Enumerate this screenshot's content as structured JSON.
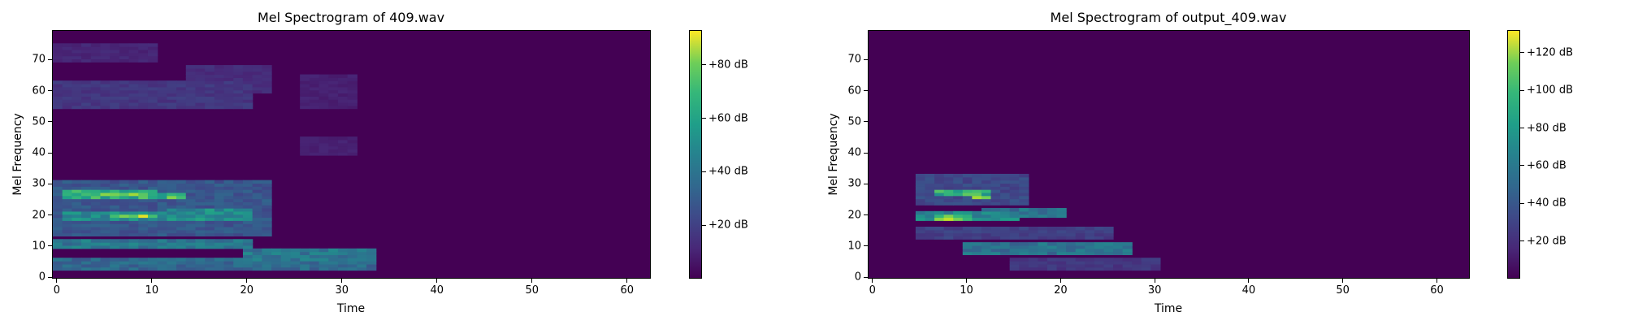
{
  "chart_data": [
    {
      "type": "heatmap",
      "title": "Mel Spectrogram of 409.wav",
      "xlabel": "Time",
      "ylabel": "Mel Frequency",
      "xlim": [
        -0.5,
        62.5
      ],
      "ylim": [
        -0.5,
        79.5
      ],
      "x_ticks": [
        0,
        10,
        20,
        30,
        40,
        50,
        60
      ],
      "y_ticks": [
        0,
        10,
        20,
        30,
        40,
        50,
        60,
        70
      ],
      "colorbar": {
        "range": [
          0,
          93
        ],
        "ticks": [
          20,
          40,
          60,
          80
        ],
        "tick_labels": [
          "+20 dB",
          "+40 dB",
          "+60 dB",
          "+80 dB"
        ]
      },
      "colormap": "viridis",
      "blobs": [
        {
          "t": [
            1,
            10
          ],
          "mel": [
            26,
            28
          ],
          "dB": 70
        },
        {
          "t": [
            5,
            10
          ],
          "mel": [
            27,
            27
          ],
          "dB": 84
        },
        {
          "t": [
            6,
            10
          ],
          "mel": [
            20,
            20
          ],
          "dB": 93
        },
        {
          "t": [
            1,
            20
          ],
          "mel": [
            19,
            21
          ],
          "dB": 55
        },
        {
          "t": [
            9,
            13
          ],
          "mel": [
            26,
            27
          ],
          "dB": 75
        },
        {
          "t": [
            12,
            20
          ],
          "mel": [
            21,
            22
          ],
          "dB": 55
        },
        {
          "t": [
            0,
            20
          ],
          "mel": [
            10,
            12
          ],
          "dB": 45
        },
        {
          "t": [
            0,
            33
          ],
          "mel": [
            3,
            6
          ],
          "dB": 38
        },
        {
          "t": [
            20,
            33
          ],
          "mel": [
            6,
            9
          ],
          "dB": 45
        },
        {
          "t": [
            0,
            22
          ],
          "mel": [
            14,
            31
          ],
          "dB": 30
        },
        {
          "t": [
            0,
            20
          ],
          "mel": [
            55,
            63
          ],
          "dB": 18
        },
        {
          "t": [
            0,
            10
          ],
          "mel": [
            70,
            75
          ],
          "dB": 12
        },
        {
          "t": [
            14,
            22
          ],
          "mel": [
            60,
            68
          ],
          "dB": 14
        },
        {
          "t": [
            26,
            31
          ],
          "mel": [
            40,
            45
          ],
          "dB": 10
        },
        {
          "t": [
            26,
            31
          ],
          "mel": [
            55,
            65
          ],
          "dB": 10
        }
      ]
    },
    {
      "type": "heatmap",
      "title": "Mel Spectrogram of output_409.wav",
      "xlabel": "Time",
      "ylabel": "Mel Frequency",
      "xlim": [
        -0.5,
        63.5
      ],
      "ylim": [
        -0.5,
        79.5
      ],
      "x_ticks": [
        0,
        10,
        20,
        30,
        40,
        50,
        60
      ],
      "y_ticks": [
        0,
        10,
        20,
        30,
        40,
        50,
        60,
        70
      ],
      "colorbar": {
        "range": [
          0,
          132
        ],
        "ticks": [
          20,
          40,
          60,
          80,
          100,
          120
        ],
        "tick_labels": [
          "+20 dB",
          "+40 dB",
          "+60 dB",
          "+80 dB",
          "+100 dB",
          "+120 dB"
        ]
      },
      "colormap": "viridis",
      "blobs": [
        {
          "t": [
            7,
            12
          ],
          "mel": [
            27,
            28
          ],
          "dB": 100
        },
        {
          "t": [
            11,
            12
          ],
          "mel": [
            26,
            26
          ],
          "dB": 132
        },
        {
          "t": [
            7,
            10
          ],
          "mel": [
            19,
            20
          ],
          "dB": 120
        },
        {
          "t": [
            5,
            15
          ],
          "mel": [
            19,
            21
          ],
          "dB": 75
        },
        {
          "t": [
            12,
            20
          ],
          "mel": [
            20,
            22
          ],
          "dB": 60
        },
        {
          "t": [
            10,
            27
          ],
          "mel": [
            8,
            11
          ],
          "dB": 60
        },
        {
          "t": [
            5,
            25
          ],
          "mel": [
            13,
            16
          ],
          "dB": 30
        },
        {
          "t": [
            15,
            30
          ],
          "mel": [
            3,
            6
          ],
          "dB": 25
        },
        {
          "t": [
            5,
            16
          ],
          "mel": [
            24,
            33
          ],
          "dB": 35
        }
      ]
    }
  ]
}
